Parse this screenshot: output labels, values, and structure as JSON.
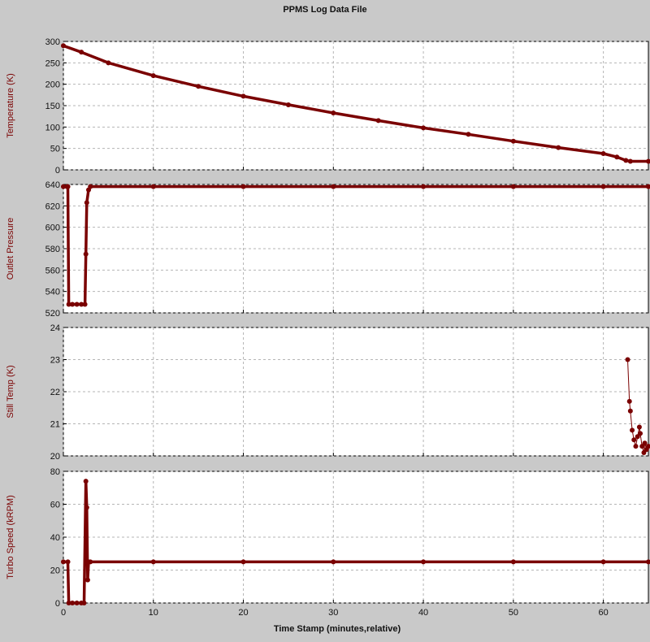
{
  "window": {
    "title": "PPMS Log Data File"
  },
  "chart_data": {
    "type": "line",
    "title": "PPMS Log Data File",
    "xlabel": "Time Stamp (minutes,relative)",
    "xlim": [
      0,
      65
    ],
    "x_ticks": [
      0,
      10,
      20,
      30,
      40,
      50,
      60
    ],
    "grid": true,
    "series_color": "#7a0000",
    "panels": [
      {
        "ylabel": "Temperature (K)",
        "ylim": [
          0,
          300
        ],
        "y_ticks": [
          0,
          50,
          100,
          150,
          200,
          250,
          300
        ],
        "series": [
          {
            "x": [
              0,
              2,
              5,
              10,
              15,
              20,
              25,
              30,
              35,
              40,
              45,
              50,
              55,
              60,
              61.5,
              62.5,
              63,
              65
            ],
            "y": [
              290,
              275,
              250,
              220,
              195,
              172,
              152,
              133,
              115,
              98,
              83,
              67,
              52,
              38,
              30,
              22,
              20,
              20
            ]
          }
        ]
      },
      {
        "ylabel": "Outlet Pressure",
        "ylim": [
          520,
          640
        ],
        "y_ticks": [
          520,
          540,
          560,
          580,
          600,
          620,
          640
        ],
        "series": [
          {
            "x": [
              0,
              0.4,
              0.5,
              0.6,
              1.0,
              1.5,
              2.0,
              2.4,
              2.5,
              2.6,
              2.8,
              3.0,
              10,
              20,
              30,
              40,
              50,
              60,
              65
            ],
            "y": [
              638,
              638,
              638,
              528,
              528,
              528,
              528,
              528,
              575,
              623,
              635,
              638,
              638,
              638,
              638,
              638,
              638,
              638,
              638
            ]
          }
        ]
      },
      {
        "ylabel": "Still Temp (K)",
        "ylim": [
          20,
          24
        ],
        "y_ticks": [
          20,
          21,
          22,
          23,
          24
        ],
        "series": [
          {
            "x": [
              62.7,
              62.9,
              63.0,
              63.2,
              63.4,
              63.6,
              63.8,
              64.0,
              64.1,
              64.3,
              64.5,
              64.6,
              64.8,
              65.0
            ],
            "y": [
              23.0,
              21.7,
              21.4,
              20.8,
              20.5,
              20.3,
              20.6,
              20.9,
              20.7,
              20.3,
              20.1,
              20.4,
              20.2,
              20.3
            ]
          }
        ]
      },
      {
        "ylabel": "Turbo Speed (kRPM)",
        "ylim": [
          0,
          80
        ],
        "y_ticks": [
          0,
          20,
          40,
          60,
          80
        ],
        "series": [
          {
            "x": [
              0,
              0.5,
              0.6,
              1.0,
              1.5,
              2.0,
              2.3,
              2.5,
              2.6,
              2.7,
              2.8,
              3.0,
              10,
              20,
              30,
              40,
              50,
              60,
              65
            ],
            "y": [
              25,
              25,
              0,
              0,
              0,
              0,
              0,
              74,
              58,
              14,
              25,
              25,
              25,
              25,
              25,
              25,
              25,
              25,
              25
            ]
          }
        ]
      }
    ]
  }
}
